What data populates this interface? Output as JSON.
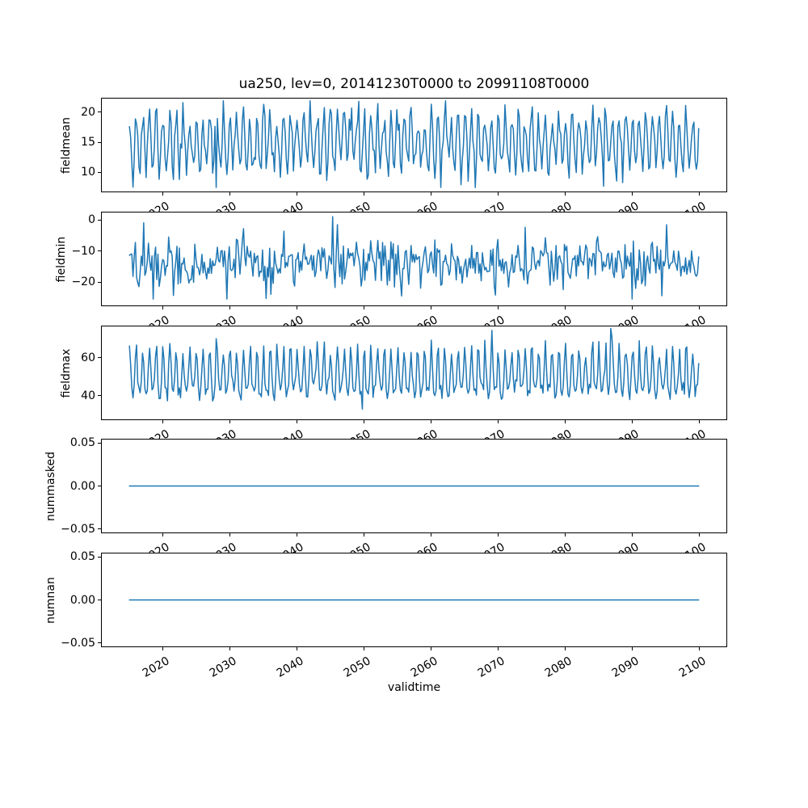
{
  "chart_data": {
    "type": "line",
    "title": "ua250, lev=0, 20141230T0000 to 20991108T0000",
    "xlabel": "validtime",
    "grid": false,
    "legend": null,
    "line_color": "#1f77b4",
    "line_width": 1.5,
    "x_start": 2014.99,
    "x_end": 2099.86,
    "xlim": [
      2010.75,
      2104.11
    ],
    "xticks": [
      2020,
      2030,
      2040,
      2050,
      2060,
      2070,
      2080,
      2090,
      2100
    ],
    "xtick_labels": [
      "2020",
      "2030",
      "2040",
      "2050",
      "2060",
      "2070",
      "2080",
      "2090",
      "2100"
    ],
    "xtick_rotation_deg": 30,
    "n_points": 480,
    "subplots": [
      {
        "ylabel": "fieldmean",
        "ylim": [
          6.7,
          22.4
        ],
        "ytick_values": [
          20,
          15,
          10
        ],
        "ytick_labels": [
          "20",
          "15",
          "10"
        ],
        "series": {
          "kind": "seasonal",
          "base": 14.9,
          "seasonal_amp": 4.3,
          "peak_power": 1,
          "noise_sd": 1.4,
          "clip": [
            7.5,
            21.9
          ],
          "seed": 11,
          "outliers": [
            {
              "frac": 0.153,
              "value": 7.5
            },
            {
              "frac": 0.402,
              "value": 21.8
            },
            {
              "frac": 0.832,
              "value": 7.7
            }
          ],
          "approx_mean": 15,
          "approx_min": 7.5,
          "approx_max": 21.9
        }
      },
      {
        "ylabel": "fieldmin",
        "ylim": [
          -27.8,
          2.6
        ],
        "ytick_values": [
          0,
          -10,
          -20
        ],
        "ytick_labels": [
          "0",
          "−10",
          "−20"
        ],
        "series": {
          "kind": "seasonal",
          "base": -13.9,
          "seasonal_amp": 2.2,
          "peak_power": 1,
          "noise_sd": 3.6,
          "clip": [
            -25.5,
            1.0
          ],
          "seed": 22,
          "outliers": [
            {
              "frac": 0.357,
              "value": 1.0
            },
            {
              "frac": 0.24,
              "value": -25.3
            },
            {
              "frac": 0.884,
              "value": -25.5
            }
          ],
          "approx_mean": -14,
          "approx_min": -25.5,
          "approx_max": 1.0
        }
      },
      {
        "ylabel": "fieldmax",
        "ylim": [
          27.2,
          77.0
        ],
        "ytick_values": [
          60,
          40
        ],
        "ytick_labels": [
          "60",
          "40"
        ],
        "series": {
          "kind": "peaked",
          "base": 42.5,
          "seasonal_amp": 24,
          "peak_power": 2.5,
          "noise_sd": 2.6,
          "clip": [
            33.0,
            75.5
          ],
          "seed": 33,
          "outliers": [
            {
              "frac": 0.41,
              "value": 33.0
            },
            {
              "frac": 0.637,
              "value": 74.5
            },
            {
              "frac": 0.845,
              "value": 75.5
            }
          ],
          "approx_mean": 49,
          "approx_min": 33.0,
          "approx_max": 75.5
        }
      },
      {
        "ylabel": "nummasked",
        "ylim": [
          -0.055,
          0.055
        ],
        "ytick_values": [
          0.05,
          0.0,
          -0.05
        ],
        "ytick_labels": [
          "0.05",
          "0.00",
          "−0.05"
        ],
        "series": {
          "kind": "constant",
          "value": 0.0,
          "approx_mean": 0,
          "approx_min": 0,
          "approx_max": 0
        }
      },
      {
        "ylabel": "numnan",
        "ylim": [
          -0.055,
          0.055
        ],
        "ytick_values": [
          0.05,
          0.0,
          -0.05
        ],
        "ytick_labels": [
          "0.05",
          "0.00",
          "−0.05"
        ],
        "series": {
          "kind": "constant",
          "value": 0.0,
          "approx_mean": 0,
          "approx_min": 0,
          "approx_max": 0
        }
      }
    ]
  }
}
